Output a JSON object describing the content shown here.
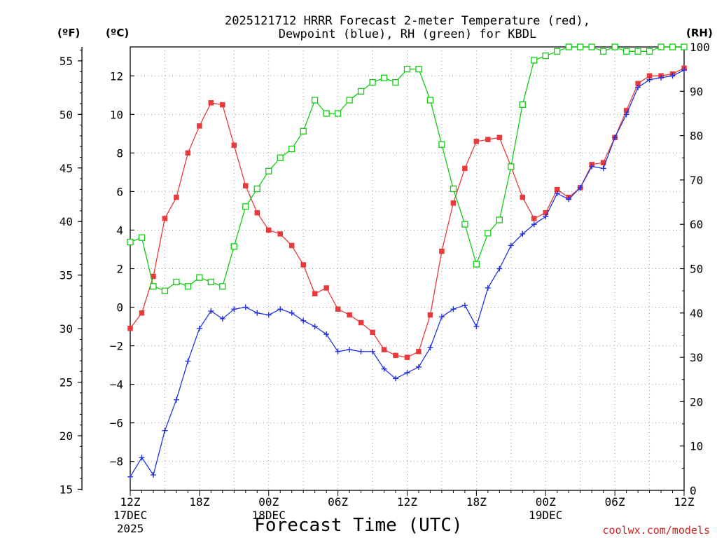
{
  "chart_data": {
    "type": "line",
    "title_line1": "2025121712 HRRR Forecast 2-meter Temperature (red),",
    "title_line2": "Dewpoint (blue), RH (green) for KBDL",
    "xlabel": "Forecast Time (UTC)",
    "credit": "coolwx.com/models",
    "unit_f": "(ºF)",
    "unit_c": "(ºC)",
    "unit_rh": "(RH)",
    "x_range": [
      0,
      48
    ],
    "x_ticks": [
      {
        "hour": 0,
        "label": "12Z",
        "date1": "17DEC",
        "date2": "2025"
      },
      {
        "hour": 6,
        "label": "18Z",
        "date1": "",
        "date2": ""
      },
      {
        "hour": 12,
        "label": "00Z",
        "date1": "18DEC",
        "date2": ""
      },
      {
        "hour": 18,
        "label": "06Z",
        "date1": "",
        "date2": ""
      },
      {
        "hour": 24,
        "label": "12Z",
        "date1": "",
        "date2": ""
      },
      {
        "hour": 30,
        "label": "18Z",
        "date1": "",
        "date2": ""
      },
      {
        "hour": 36,
        "label": "00Z",
        "date1": "19DEC",
        "date2": ""
      },
      {
        "hour": 42,
        "label": "06Z",
        "date1": "",
        "date2": ""
      },
      {
        "hour": 48,
        "label": "12Z",
        "date1": "",
        "date2": ""
      }
    ],
    "celsius_range": [
      -9.5,
      13.5
    ],
    "celsius_ticks": [
      -8,
      -6,
      -4,
      -2,
      0,
      2,
      4,
      6,
      8,
      10,
      12
    ],
    "fahrenheit_ticks": [
      15,
      20,
      25,
      30,
      35,
      40,
      45,
      50,
      55
    ],
    "rh_range": [
      0,
      100
    ],
    "rh_ticks": [
      0,
      10,
      20,
      30,
      40,
      50,
      60,
      70,
      80,
      90,
      100
    ],
    "series": [
      {
        "name": "2-meter Temperature",
        "unit": "C",
        "color": "#e83a3a",
        "marker": "filled-square",
        "values": [
          -1.1,
          -0.3,
          1.6,
          4.6,
          5.7,
          8.0,
          9.4,
          10.6,
          10.5,
          8.4,
          6.3,
          4.9,
          4.0,
          3.8,
          3.2,
          2.2,
          0.7,
          1.0,
          -0.1,
          -0.4,
          -0.8,
          -1.3,
          -2.2,
          -2.5,
          -2.6,
          -2.3,
          -0.4,
          2.9,
          5.4,
          7.2,
          8.6,
          8.7,
          8.8,
          7.3,
          5.7,
          4.6,
          4.9,
          6.1,
          5.7,
          6.2,
          7.4,
          7.5,
          8.8,
          10.2,
          11.6,
          12.0,
          12.0,
          12.1,
          12.4
        ]
      },
      {
        "name": "Dewpoint",
        "unit": "C",
        "color": "#2233dd",
        "marker": "plus",
        "values": [
          -8.8,
          -7.8,
          -8.7,
          -6.4,
          -4.8,
          -2.8,
          -1.1,
          -0.2,
          -0.6,
          -0.1,
          0.0,
          -0.3,
          -0.4,
          -0.1,
          -0.3,
          -0.7,
          -1.0,
          -1.4,
          -2.3,
          -2.2,
          -2.3,
          -2.3,
          -3.2,
          -3.7,
          -3.4,
          -3.1,
          -2.1,
          -0.5,
          -0.1,
          0.1,
          -1.0,
          1.0,
          2.0,
          3.2,
          3.8,
          4.3,
          4.7,
          5.9,
          5.6,
          6.2,
          7.3,
          7.2,
          8.8,
          10.0,
          11.4,
          11.8,
          11.9,
          12.0,
          12.3
        ]
      },
      {
        "name": "RH",
        "unit": "%",
        "color": "#11cc11",
        "marker": "open-square",
        "values": [
          56,
          57,
          46,
          45,
          47,
          46,
          48,
          47,
          46,
          55,
          64,
          68,
          72,
          75,
          77,
          81,
          88,
          85,
          85,
          88,
          90,
          92,
          93,
          92,
          95,
          95,
          88,
          78,
          68,
          60,
          51,
          58,
          61,
          73,
          87,
          97,
          98,
          99,
          100,
          100,
          100,
          99,
          100,
          99,
          99,
          99,
          100,
          100,
          100
        ]
      }
    ]
  }
}
